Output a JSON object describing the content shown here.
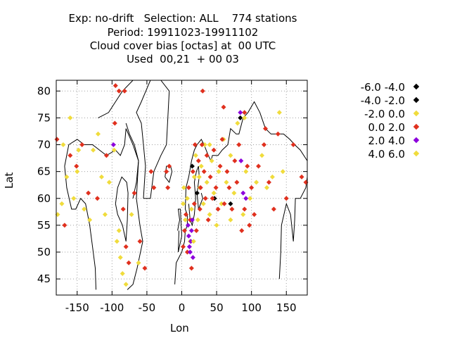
{
  "title": {
    "line1": "Exp: no-drift   Selection: ALL    774 stations",
    "line2": "Period: 19911023-19911102",
    "line3": "Cloud cover bias [octas] at  00 UTC",
    "line4": "Used  00,21  + 00 03"
  },
  "chart_data": {
    "type": "scatter",
    "title": "Exp: no-drift   Selection: ALL    774 stations",
    "xlabel": "Lon",
    "ylabel": "Lat",
    "xlim": [
      -180,
      180
    ],
    "ylim": [
      42,
      82
    ],
    "x_ticks": [
      -150,
      -100,
      -50,
      0,
      50,
      100,
      150
    ],
    "y_ticks": [
      45,
      50,
      55,
      60,
      65,
      70,
      75,
      80
    ],
    "x_tick_labels": [
      "-150",
      "-100",
      "-50",
      "0",
      "50",
      "100",
      "150"
    ],
    "y_tick_labels": [
      "45",
      "50",
      "55",
      "60",
      "65",
      "70",
      "75",
      "80"
    ],
    "grid": true,
    "legend_position": "right",
    "series": [
      {
        "name": "-6.0 -4.0",
        "color": "#000000",
        "points": []
      },
      {
        "name": "-4.0 -2.0",
        "color": "#000000",
        "points": [
          [
            15,
            66
          ],
          [
            22,
            61
          ],
          [
            47,
            60
          ],
          [
            70,
            59
          ],
          [
            84,
            75
          ]
        ]
      },
      {
        "name": "-2.0 0.0",
        "color": "#f0dc3c",
        "points": [
          [
            -165,
            64
          ],
          [
            -155,
            60
          ],
          [
            -148,
            69
          ],
          [
            -140,
            58
          ],
          [
            -132,
            56
          ],
          [
            -127,
            69
          ],
          [
            -120,
            72
          ],
          [
            -115,
            64
          ],
          [
            -110,
            57
          ],
          [
            -104,
            63
          ],
          [
            -97,
            69
          ],
          [
            -93,
            52
          ],
          [
            -88,
            49
          ],
          [
            -85,
            46
          ],
          [
            -80,
            44
          ],
          [
            -72,
            57
          ],
          [
            -62,
            48
          ],
          [
            3,
            62
          ],
          [
            5,
            56
          ],
          [
            8,
            60
          ],
          [
            12,
            52
          ],
          [
            14,
            58
          ],
          [
            18,
            64
          ],
          [
            20,
            68
          ],
          [
            23,
            56
          ],
          [
            26,
            62
          ],
          [
            28,
            66
          ],
          [
            31,
            59
          ],
          [
            33,
            70
          ],
          [
            36,
            63
          ],
          [
            40,
            57
          ],
          [
            43,
            67
          ],
          [
            46,
            61
          ],
          [
            50,
            55
          ],
          [
            53,
            65
          ],
          [
            57,
            59
          ],
          [
            60,
            71
          ],
          [
            64,
            63
          ],
          [
            70,
            68
          ],
          [
            75,
            61
          ],
          [
            80,
            74
          ],
          [
            88,
            57
          ],
          [
            92,
            65
          ],
          [
            98,
            60
          ],
          [
            107,
            63
          ],
          [
            115,
            68
          ],
          [
            122,
            62
          ],
          [
            140,
            76
          ],
          [
            145,
            65
          ],
          [
            -178,
            57
          ],
          [
            -170,
            70
          ],
          [
            -160,
            75
          ]
        ]
      },
      {
        "name": "0.0 2.0",
        "color": "#e0301e",
        "points": [
          [
            -179,
            71
          ],
          [
            -168,
            55
          ],
          [
            -160,
            68
          ],
          [
            -151,
            66
          ],
          [
            -143,
            70
          ],
          [
            -134,
            61
          ],
          [
            -121,
            60
          ],
          [
            -108,
            68
          ],
          [
            -96,
            74
          ],
          [
            -90,
            80
          ],
          [
            -84,
            58
          ],
          [
            -80,
            51
          ],
          [
            -76,
            48
          ],
          [
            -68,
            61
          ],
          [
            -60,
            52
          ],
          [
            -53,
            47
          ],
          [
            -22,
            65
          ],
          [
            -20,
            62
          ],
          [
            -18,
            66
          ],
          [
            2,
            51
          ],
          [
            4,
            54
          ],
          [
            6,
            57
          ],
          [
            8,
            50
          ],
          [
            10,
            62
          ],
          [
            12,
            56
          ],
          [
            14,
            47
          ],
          [
            16,
            65
          ],
          [
            18,
            59
          ],
          [
            19,
            70
          ],
          [
            21,
            54
          ],
          [
            24,
            67
          ],
          [
            26,
            58
          ],
          [
            27,
            62
          ],
          [
            29,
            70
          ],
          [
            32,
            65
          ],
          [
            34,
            60
          ],
          [
            36,
            68
          ],
          [
            38,
            56
          ],
          [
            41,
            64
          ],
          [
            44,
            60
          ],
          [
            46,
            69
          ],
          [
            49,
            62
          ],
          [
            52,
            58
          ],
          [
            55,
            66
          ],
          [
            58,
            71
          ],
          [
            61,
            59
          ],
          [
            65,
            65
          ],
          [
            68,
            62
          ],
          [
            72,
            58
          ],
          [
            76,
            67
          ],
          [
            79,
            63
          ],
          [
            82,
            70
          ],
          [
            86,
            54
          ],
          [
            90,
            58
          ],
          [
            94,
            66
          ],
          [
            97,
            55
          ],
          [
            100,
            62
          ],
          [
            104,
            57
          ],
          [
            110,
            66
          ],
          [
            118,
            70
          ],
          [
            125,
            63
          ],
          [
            132,
            58
          ],
          [
            138,
            72
          ],
          [
            150,
            60
          ],
          [
            160,
            70
          ],
          [
            172,
            64
          ],
          [
            178,
            63
          ],
          [
            30,
            80
          ],
          [
            60,
            77
          ],
          [
            90,
            76
          ],
          [
            120,
            73
          ],
          [
            -40,
            62
          ],
          [
            -44,
            65
          ],
          [
            -95,
            81
          ],
          [
            -82,
            80
          ]
        ]
      },
      {
        "name": "2.0 4.0",
        "color": "#8c00dc",
        "points": [
          [
            9,
            55
          ],
          [
            10,
            53
          ],
          [
            11,
            51
          ],
          [
            12,
            50
          ],
          [
            13,
            52
          ],
          [
            14,
            54
          ],
          [
            15,
            56
          ],
          [
            16,
            49
          ],
          [
            84,
            76
          ],
          [
            85,
            67
          ],
          [
            88,
            61
          ],
          [
            92,
            60
          ],
          [
            -98,
            70
          ]
        ]
      },
      {
        "name": "4.0 6.0",
        "color": "#f0dc3c",
        "points": [
          [
            -172,
            59
          ],
          [
            -150,
            65
          ],
          [
            -90,
            54
          ],
          [
            2,
            59
          ],
          [
            17,
            52
          ],
          [
            25,
            64
          ],
          [
            40,
            70
          ],
          [
            70,
            56
          ],
          [
            90,
            75
          ],
          [
            130,
            64
          ]
        ]
      }
    ],
    "background_map": "coastlines (black outline)"
  },
  "axes": {
    "xlabel": "Lon",
    "ylabel": "Lat"
  },
  "legend": [
    {
      "label": "-6.0 -4.0",
      "color": "#000000"
    },
    {
      "label": "-4.0 -2.0",
      "color": "#000000"
    },
    {
      "label": "-2.0 0.0",
      "color": "#f0dc3c"
    },
    {
      "label": "0.0 2.0",
      "color": "#e0301e"
    },
    {
      "label": "2.0 4.0",
      "color": "#8c00dc"
    },
    {
      "label": "4.0 6.0",
      "color": "#f0dc3c"
    }
  ]
}
